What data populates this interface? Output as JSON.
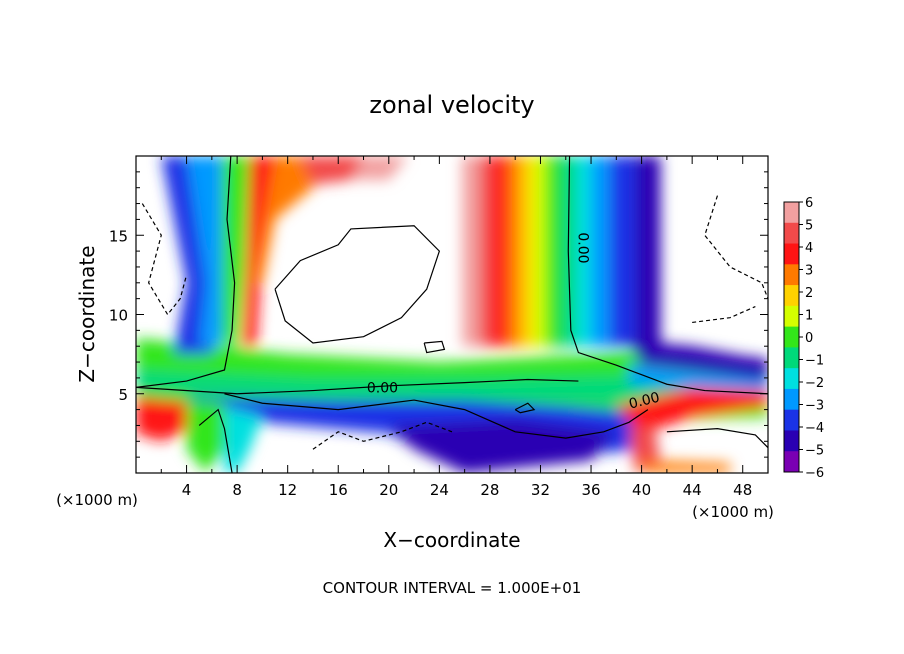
{
  "chart_data": {
    "type": "heatmap",
    "title": "zonal velocity",
    "xlabel": "X−coordinate",
    "ylabel": "Z−coordinate",
    "x_unit_left": "(×1000 m)",
    "x_unit_right": "(×1000 m)",
    "footer": "CONTOUR INTERVAL = 1.000E+01",
    "xlim": [
      0,
      50
    ],
    "ylim": [
      0,
      20
    ],
    "x_ticks": [
      "4",
      "8",
      "12",
      "16",
      "20",
      "24",
      "28",
      "32",
      "36",
      "40",
      "44",
      "48"
    ],
    "y_ticks": [
      "5",
      "10",
      "15"
    ],
    "colorbar": {
      "labels": [
        "6",
        "5",
        "4",
        "3",
        "2",
        "1",
        "0",
        "−1",
        "−2",
        "−3",
        "−4",
        "−5",
        "−6"
      ],
      "range": [
        -6,
        6
      ]
    },
    "contour_labels": [
      "0.00",
      "0.00",
      "0.00"
    ]
  }
}
